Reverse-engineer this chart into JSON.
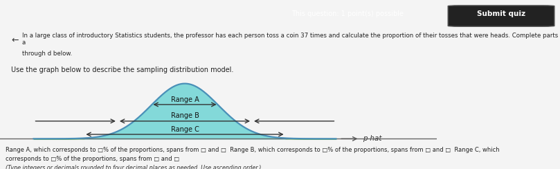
{
  "top_text_line1": "In a large class of introductory Statistics students, the professor has each person toss a coin 37 times and calculate the proportion of their tosses that were heads. Complete parts a",
  "top_text_line2": "through d below.",
  "subtitle": "Use the graph below to describe the sampling distribution model.",
  "bottom_text": "Range A, which corresponds to □% of the proportions, spans from □ and □  Range B, which corresponds to □% of the proportions, spans from □ and □  Range C, which",
  "bottom_text2": "corresponds to □% of the proportions, spans from □ and □",
  "bottom_text3": "(Type integers or decimals rounded to four decimal places as needed. Use ascending order.)",
  "header_right": "This question: 1 point(s) possible",
  "header_button": "Submit quiz",
  "xlabel": "p-hat",
  "bg_color": "#f4f4f4",
  "header_bg": "#c0392b",
  "curve_color": "#4a90b8",
  "fill_cyan": "#7dd8d8",
  "fill_green": "#5cb85c",
  "range_labels": [
    "Range A",
    "Range B",
    "Range C"
  ],
  "mu": 0.0,
  "sigma": 1.0,
  "figsize": [
    8.09,
    2.44
  ],
  "dpi": 100
}
